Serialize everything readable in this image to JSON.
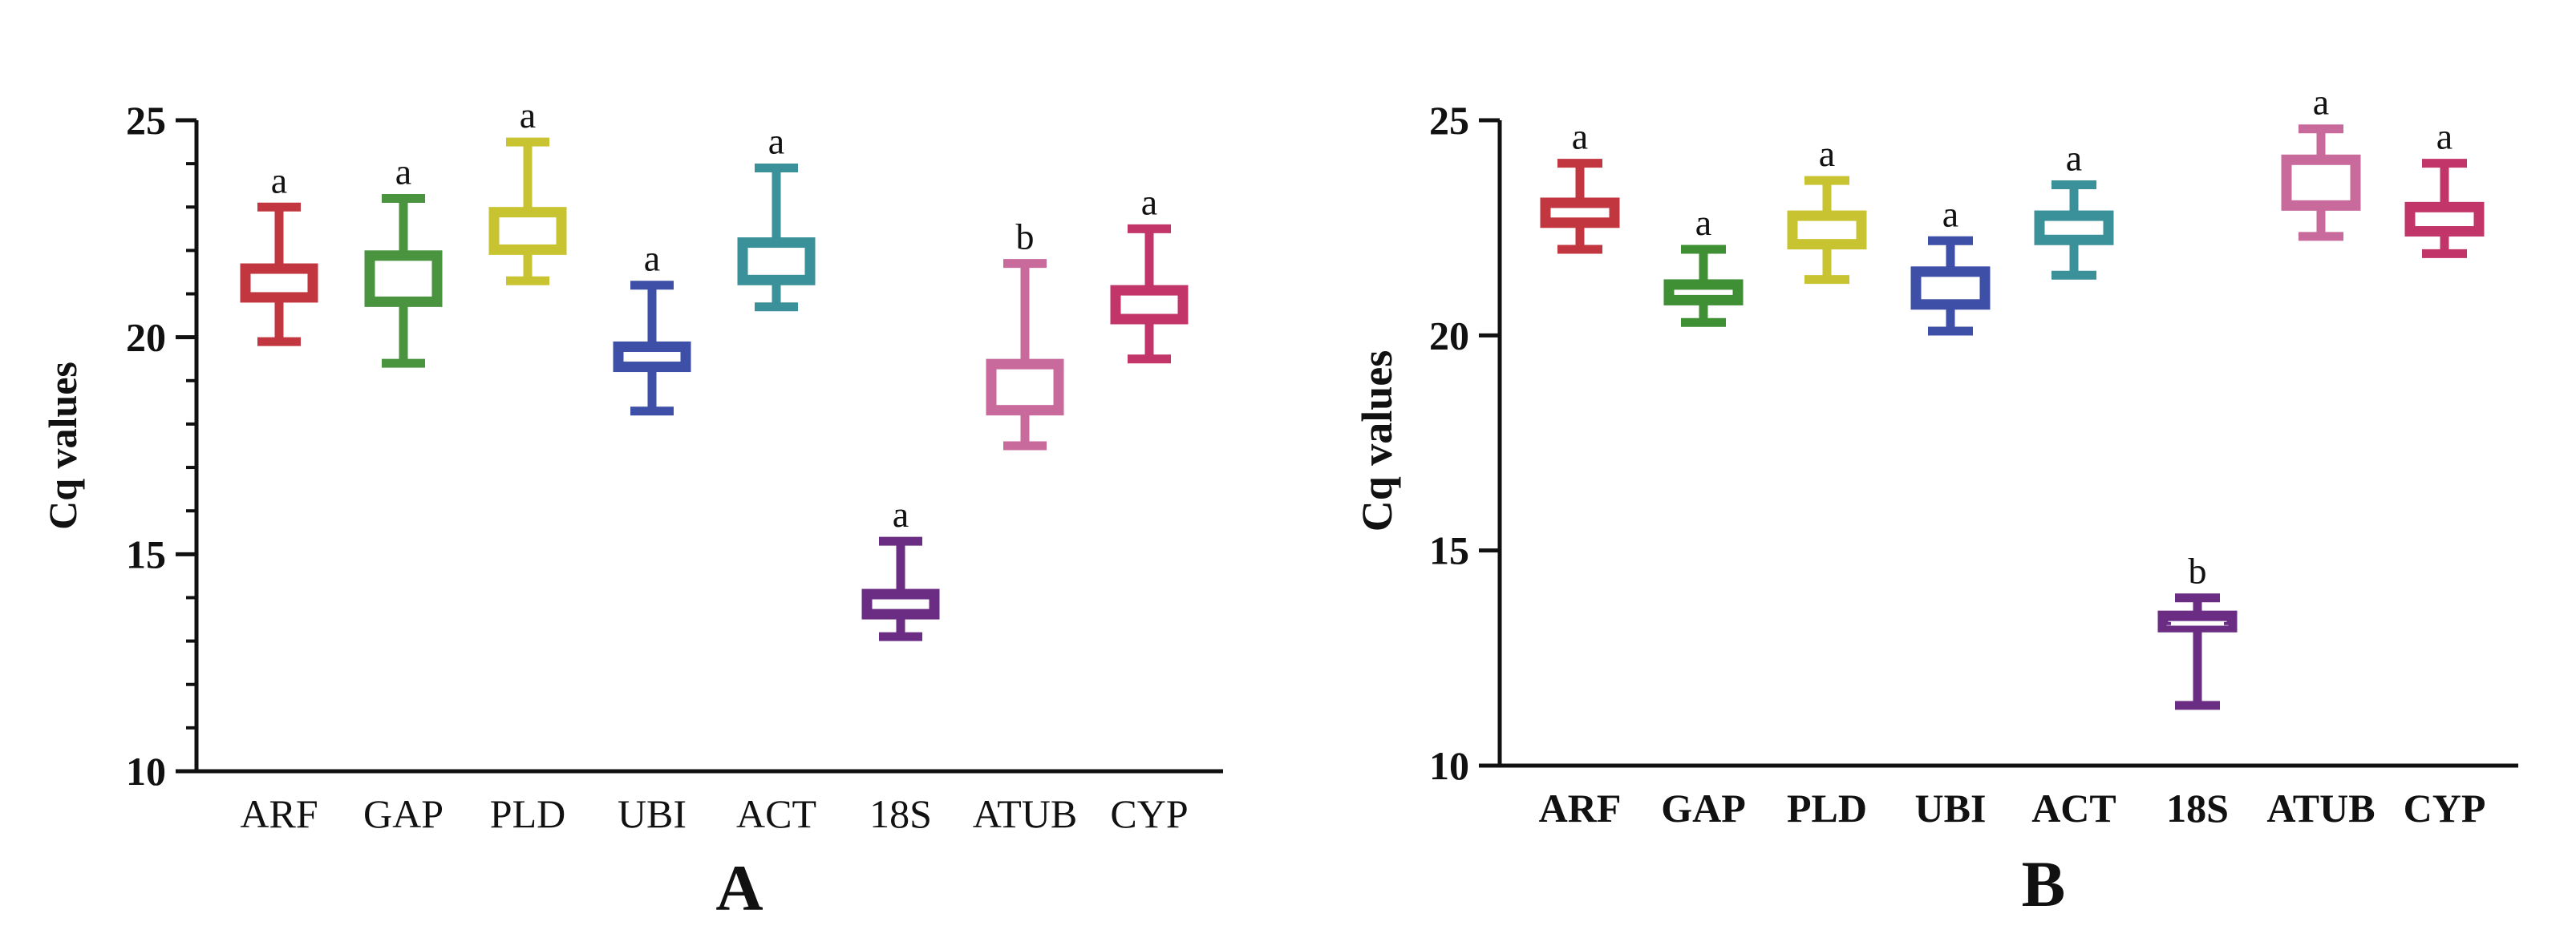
{
  "chart_data": [
    {
      "type": "box",
      "panel_label": "A",
      "ylabel": "Cq values",
      "xlabel": "",
      "ylim": [
        10,
        25
      ],
      "yticks": [
        10,
        15,
        20,
        25
      ],
      "categories": [
        "ARF",
        "GAP",
        "PLD",
        "UBI",
        "ACT",
        "18S",
        "ATUB",
        "CYP"
      ],
      "series": [
        {
          "name": "ARF",
          "color": "#c1363f",
          "min": 19.9,
          "q1": 20.9,
          "median": 21.3,
          "q3": 21.6,
          "max": 23.0,
          "letter": "a"
        },
        {
          "name": "GAP",
          "color": "#4a9440",
          "min": 19.4,
          "q1": 20.8,
          "median": 21.3,
          "q3": 21.9,
          "max": 23.2,
          "letter": "a"
        },
        {
          "name": "PLD",
          "color": "#c8c331",
          "min": 21.3,
          "q1": 22.0,
          "median": 22.5,
          "q3": 22.9,
          "max": 24.5,
          "letter": "a"
        },
        {
          "name": "UBI",
          "color": "#3e4fa8",
          "min": 18.3,
          "q1": 19.3,
          "median": 19.6,
          "q3": 19.8,
          "max": 21.2,
          "letter": "a"
        },
        {
          "name": "ACT",
          "color": "#3a9199",
          "min": 20.7,
          "q1": 21.3,
          "median": 21.8,
          "q3": 22.2,
          "max": 23.9,
          "letter": "a"
        },
        {
          "name": "18S",
          "color": "#6b2d84",
          "min": 13.1,
          "q1": 13.6,
          "median": 13.9,
          "q3": 14.1,
          "max": 15.3,
          "letter": "a"
        },
        {
          "name": "ATUB",
          "color": "#c86a9b",
          "min": 17.5,
          "q1": 18.3,
          "median": 18.6,
          "q3": 19.4,
          "max": 21.7,
          "letter": "b"
        },
        {
          "name": "CYP",
          "color": "#c23568",
          "min": 19.5,
          "q1": 20.4,
          "median": 20.8,
          "q3": 21.1,
          "max": 22.5,
          "letter": "a"
        }
      ]
    },
    {
      "type": "box",
      "panel_label": "B",
      "ylabel": "Cq values",
      "xlabel": "",
      "ylim": [
        10,
        25
      ],
      "yticks": [
        10,
        15,
        20,
        25
      ],
      "categories": [
        "ARF",
        "GAP",
        "PLD",
        "UBI",
        "ACT",
        "18S",
        "ATUB",
        "CYP"
      ],
      "series": [
        {
          "name": "ARF",
          "color": "#c1363f",
          "min": 22.0,
          "q1": 22.6,
          "median": 22.8,
          "q3": 23.1,
          "max": 24.0,
          "letter": "a"
        },
        {
          "name": "GAP",
          "color": "#3f8f34",
          "min": 20.3,
          "q1": 20.8,
          "median": 21.0,
          "q3": 21.2,
          "max": 22.0,
          "letter": "a"
        },
        {
          "name": "PLD",
          "color": "#c8c331",
          "min": 21.3,
          "q1": 22.1,
          "median": 22.4,
          "q3": 22.8,
          "max": 23.6,
          "letter": "a"
        },
        {
          "name": "UBI",
          "color": "#3e4fa8",
          "min": 20.1,
          "q1": 20.7,
          "median": 21.1,
          "q3": 21.5,
          "max": 22.2,
          "letter": "a"
        },
        {
          "name": "ACT",
          "color": "#3a9199",
          "min": 21.4,
          "q1": 22.2,
          "median": 22.5,
          "q3": 22.8,
          "max": 23.5,
          "letter": "a"
        },
        {
          "name": "18S",
          "color": "#6b2d84",
          "min": 11.4,
          "q1": 13.2,
          "median": 13.3,
          "q3": 13.5,
          "max": 13.9,
          "letter": "b"
        },
        {
          "name": "ATUB",
          "color": "#c86a9b",
          "min": 22.3,
          "q1": 23.0,
          "median": 23.3,
          "q3": 24.1,
          "max": 24.8,
          "letter": "a"
        },
        {
          "name": "CYP",
          "color": "#c23568",
          "min": 21.9,
          "q1": 22.4,
          "median": 22.7,
          "q3": 23.0,
          "max": 24.0,
          "letter": "a"
        }
      ]
    }
  ]
}
